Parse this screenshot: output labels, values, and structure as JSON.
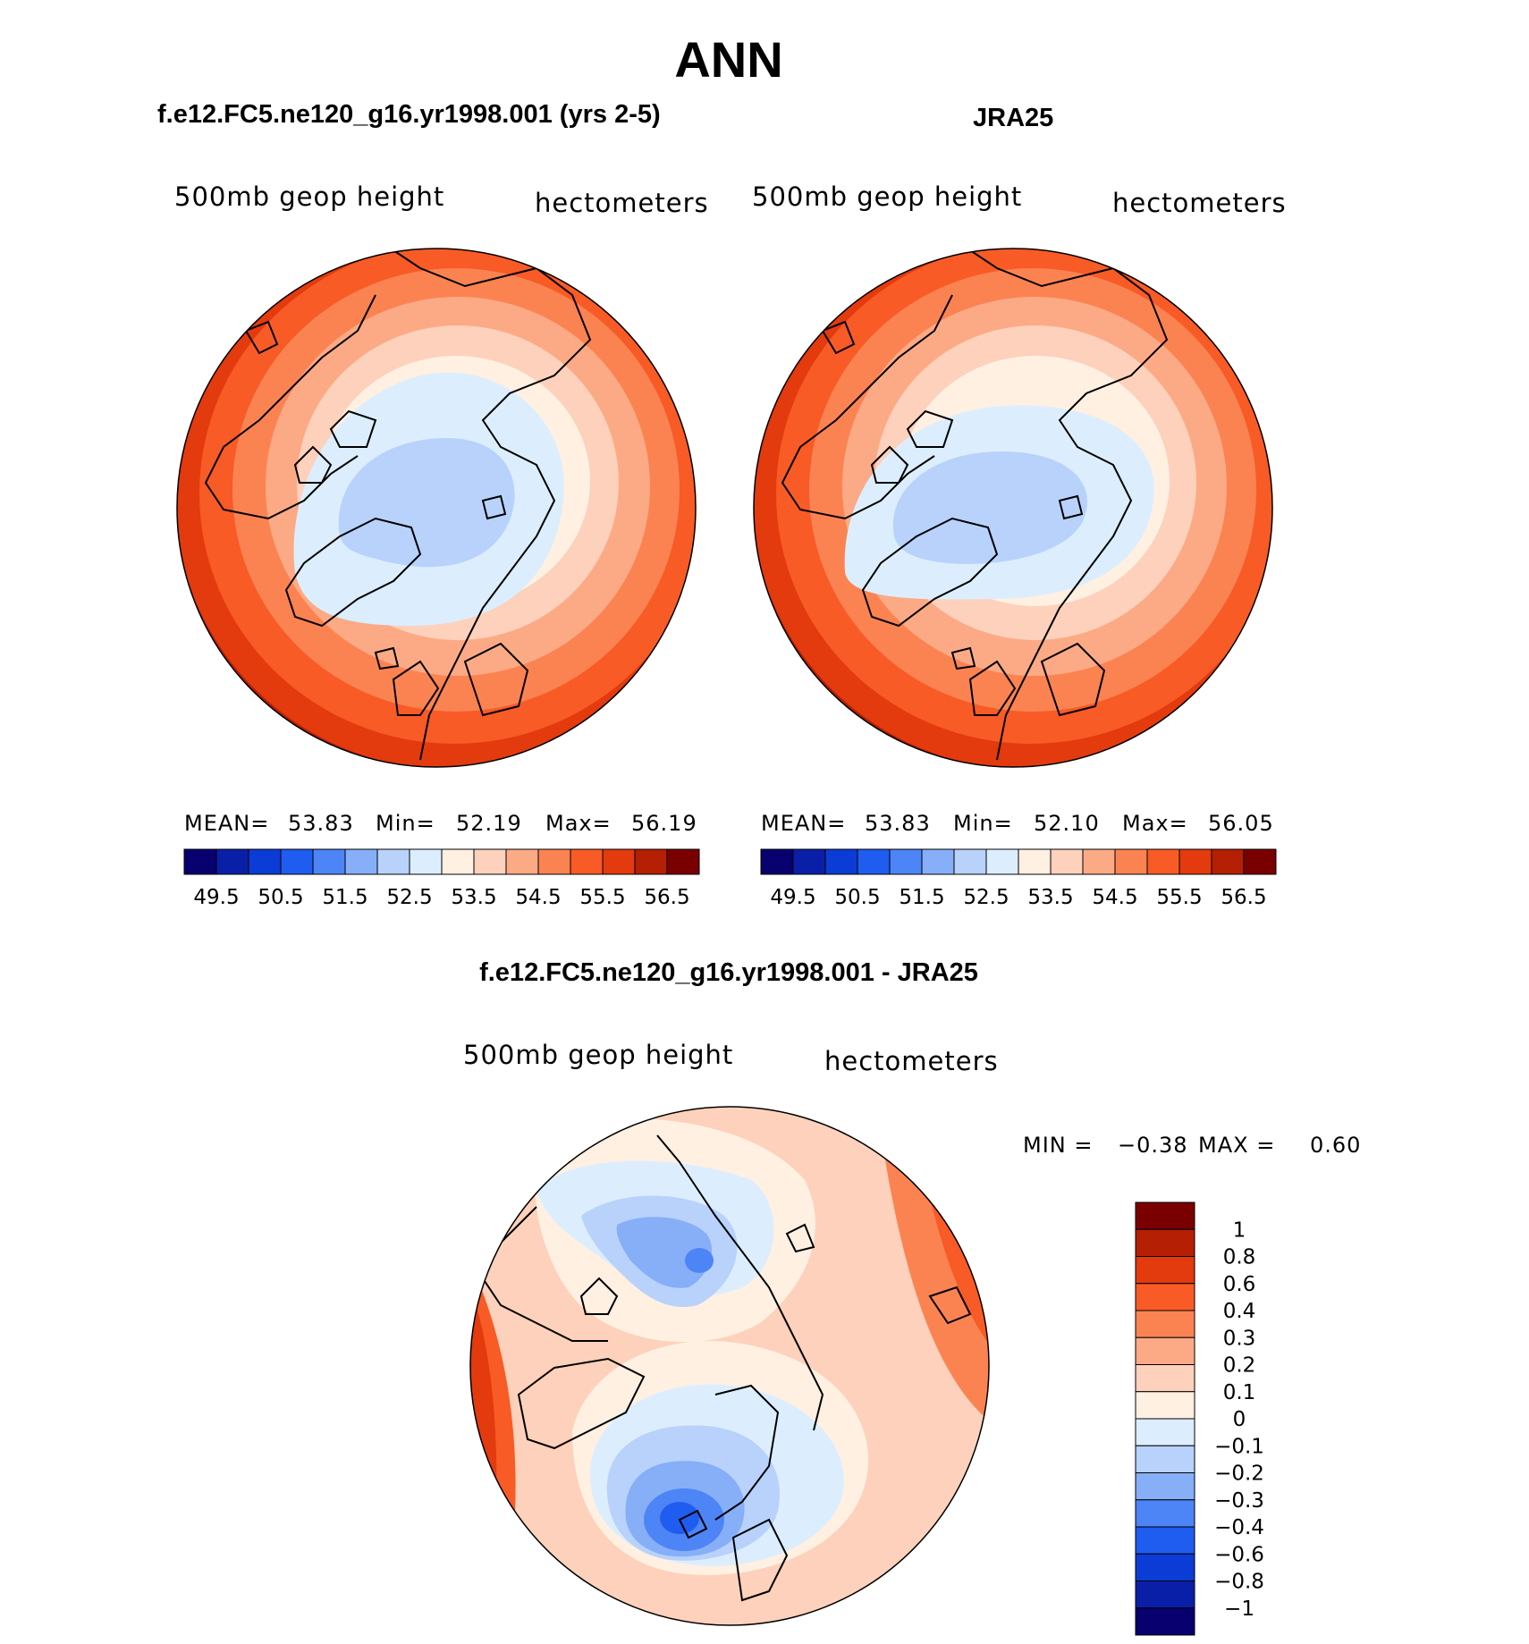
{
  "figure": {
    "title": "ANN",
    "panel_left": {
      "title": "f.e12.FC5.ne120_g16.yr1998.001 (yrs 2-5)",
      "variable": "500mb geop height",
      "units": "hectometers",
      "stats": {
        "mean_label": "MEAN=",
        "mean": "53.83",
        "min_label": "Min=",
        "min": "52.19",
        "max_label": "Max=",
        "max": "56.19"
      }
    },
    "panel_right": {
      "title": "JRA25",
      "variable": "500mb geop height",
      "units": "hectometers",
      "stats": {
        "mean_label": "MEAN=",
        "mean": "53.83",
        "min_label": "Min=",
        "min": "52.10",
        "max_label": "Max=",
        "max": "56.05"
      }
    },
    "panel_diff": {
      "title": "f.e12.FC5.ne120_g16.yr1998.001 - JRA25",
      "variable": "500mb geop height",
      "units": "hectometers",
      "stats": {
        "min_label": "MIN =",
        "min": "−0.38",
        "max_label": "MAX =",
        "max": "0.60"
      }
    },
    "abs_colorbar": {
      "colors": [
        "#08006e",
        "#0a1fa8",
        "#0c3cd6",
        "#1f5cf0",
        "#4d84f6",
        "#86aff8",
        "#b8d2fb",
        "#dceefe",
        "#fff0e2",
        "#fdd1bb",
        "#fcaa86",
        "#fb8352",
        "#f85b26",
        "#e33a0e",
        "#b51f04",
        "#7a0000"
      ],
      "tick_labels": [
        "49.5",
        "50.5",
        "51.5",
        "52.5",
        "53.5",
        "54.5",
        "55.5",
        "56.5"
      ]
    },
    "diff_colorbar": {
      "colors": [
        "#7a0000",
        "#b51f04",
        "#e33a0e",
        "#f85b26",
        "#fb8352",
        "#fcaa86",
        "#fdd1bb",
        "#fff0e2",
        "#dceefe",
        "#b8d2fb",
        "#86aff8",
        "#4d84f6",
        "#1f5cf0",
        "#0c3cd6",
        "#0a1fa8",
        "#08006e"
      ],
      "tick_labels": [
        "1",
        "0.8",
        "0.6",
        "0.4",
        "0.3",
        "0.2",
        "0.1",
        "0",
        "−0.1",
        "−0.2",
        "−0.3",
        "−0.4",
        "−0.6",
        "−0.8",
        "−1"
      ]
    }
  }
}
